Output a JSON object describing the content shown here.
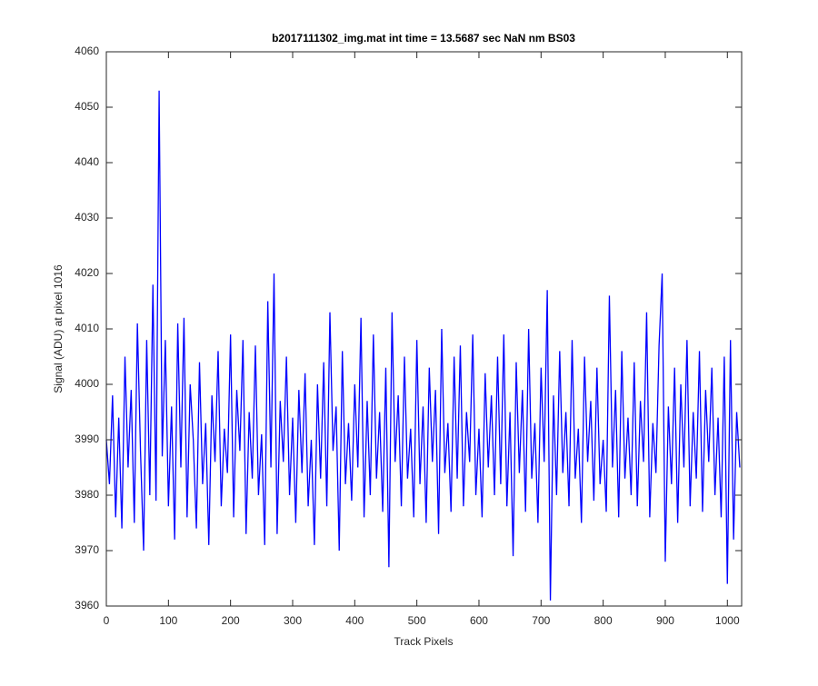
{
  "chart_data": {
    "type": "line",
    "title": "b2017111302_img.mat int time = 13.5687 sec  NaN nm BS03",
    "x_label": "Track Pixels",
    "y_label": "Signal (ADU) at pixel 1016",
    "xlim": [
      0,
      1023
    ],
    "ylim": [
      3960,
      4060
    ],
    "xticks": [
      0,
      100,
      200,
      300,
      400,
      500,
      600,
      700,
      800,
      900,
      1000
    ],
    "yticks": [
      3960,
      3970,
      3980,
      3990,
      4000,
      4010,
      4020,
      4030,
      4040,
      4050,
      4060
    ],
    "grid": false,
    "x": [
      0,
      5,
      10,
      15,
      20,
      25,
      30,
      35,
      40,
      45,
      50,
      55,
      60,
      65,
      70,
      75,
      80,
      85,
      90,
      95,
      100,
      105,
      110,
      115,
      120,
      125,
      130,
      135,
      140,
      145,
      150,
      155,
      160,
      165,
      170,
      175,
      180,
      185,
      190,
      195,
      200,
      205,
      210,
      215,
      220,
      225,
      230,
      235,
      240,
      245,
      250,
      255,
      260,
      265,
      270,
      275,
      280,
      285,
      290,
      295,
      300,
      305,
      310,
      315,
      320,
      325,
      330,
      335,
      340,
      345,
      350,
      355,
      360,
      365,
      370,
      375,
      380,
      385,
      390,
      395,
      400,
      405,
      410,
      415,
      420,
      425,
      430,
      435,
      440,
      445,
      450,
      455,
      460,
      465,
      470,
      475,
      480,
      485,
      490,
      495,
      500,
      505,
      510,
      515,
      520,
      525,
      530,
      535,
      540,
      545,
      550,
      555,
      560,
      565,
      570,
      575,
      580,
      585,
      590,
      595,
      600,
      605,
      610,
      615,
      620,
      625,
      630,
      635,
      640,
      645,
      650,
      655,
      660,
      665,
      670,
      675,
      680,
      685,
      690,
      695,
      700,
      705,
      710,
      715,
      720,
      725,
      730,
      735,
      740,
      745,
      750,
      755,
      760,
      765,
      770,
      775,
      780,
      785,
      790,
      795,
      800,
      805,
      810,
      815,
      820,
      825,
      830,
      835,
      840,
      845,
      850,
      855,
      860,
      865,
      870,
      875,
      880,
      885,
      890,
      895,
      900,
      905,
      910,
      915,
      920,
      925,
      930,
      935,
      940,
      945,
      950,
      955,
      960,
      965,
      970,
      975,
      980,
      985,
      990,
      995,
      1000,
      1005,
      1010,
      1015,
      1020
    ],
    "series": [
      {
        "color": "#0000ff",
        "values": [
          3990,
          3982,
          3998,
          3976,
          3994,
          3974,
          4005,
          3985,
          3999,
          3975,
          4011,
          3988,
          3970,
          4008,
          3980,
          4018,
          3979,
          4053,
          3987,
          4008,
          3978,
          3996,
          3972,
          4011,
          3985,
          4012,
          3976,
          4000,
          3990,
          3974,
          4004,
          3982,
          3993,
          3971,
          3998,
          3986,
          4006,
          3978,
          3992,
          3984,
          4009,
          3976,
          3999,
          3988,
          4008,
          3973,
          3995,
          3983,
          4007,
          3980,
          3991,
          3971,
          4015,
          3985,
          4020,
          3973,
          3997,
          3986,
          4005,
          3980,
          3994,
          3975,
          3999,
          3984,
          4002,
          3978,
          3990,
          3971,
          4000,
          3983,
          4004,
          3978,
          4013,
          3988,
          3996,
          3970,
          4006,
          3982,
          3993,
          3979,
          4000,
          3985,
          4012,
          3976,
          3997,
          3980,
          4009,
          3983,
          3995,
          3977,
          4003,
          3967,
          4013,
          3986,
          3998,
          3978,
          4005,
          3983,
          3992,
          3976,
          4008,
          3982,
          3996,
          3975,
          4003,
          3986,
          3999,
          3973,
          4010,
          3984,
          3993,
          3977,
          4005,
          3983,
          4007,
          3978,
          3995,
          3986,
          4009,
          3980,
          3992,
          3976,
          4002,
          3985,
          3998,
          3980,
          4005,
          3982,
          4009,
          3978,
          3995,
          3969,
          4004,
          3984,
          3999,
          3977,
          4010,
          3983,
          3993,
          3975,
          4003,
          3986,
          4017,
          3961,
          3998,
          3980,
          4006,
          3984,
          3995,
          3978,
          4008,
          3983,
          3992,
          3975,
          4005,
          3986,
          3997,
          3979,
          4003,
          3982,
          3990,
          3977,
          4016,
          3985,
          3999,
          3976,
          4006,
          3983,
          3994,
          3980,
          4004,
          3978,
          3997,
          3986,
          4013,
          3976,
          3993,
          3984,
          4007,
          4020,
          3968,
          3996,
          3982,
          4003,
          3975,
          4000,
          3985,
          4008,
          3978,
          3995,
          3983,
          4006,
          3977,
          3999,
          3986,
          4003,
          3980,
          3994,
          3976,
          4005,
          3964,
          4008,
          3972,
          3995,
          3985
        ]
      }
    ]
  }
}
